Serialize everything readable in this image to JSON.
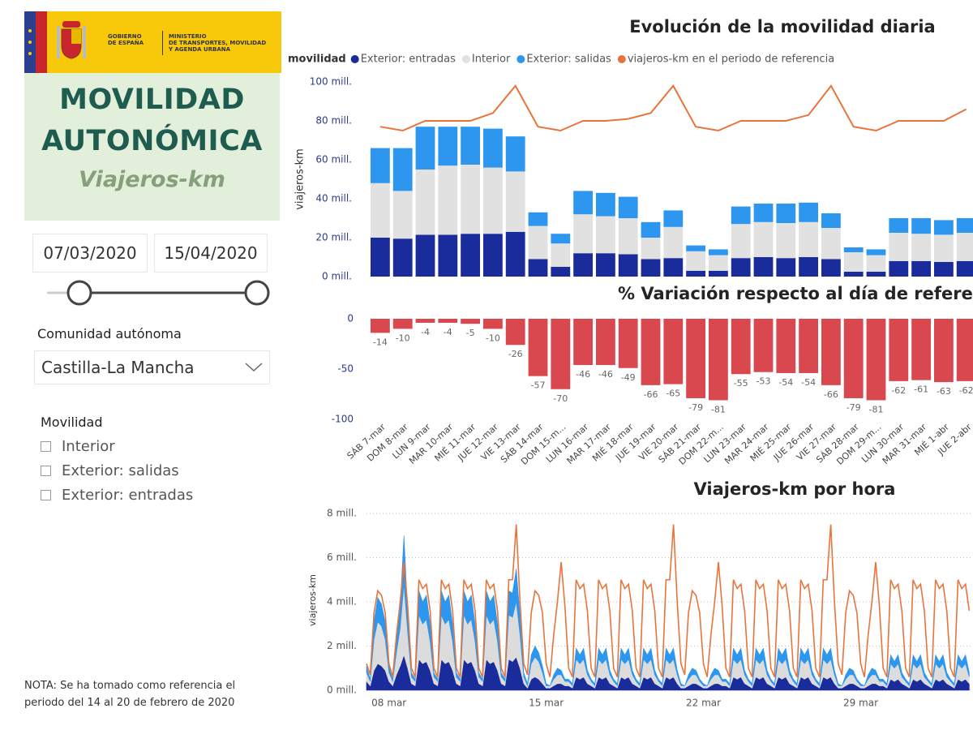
{
  "panel": {
    "logo": {
      "gobierno": [
        "GOBIERNO",
        "DE ESPAÑA"
      ],
      "ministerio": [
        "MINISTERIO",
        "DE TRANSPORTES, MOVILIDAD",
        "Y AGENDA URBANA"
      ]
    },
    "title": [
      "MOVILIDAD",
      "AUTONÓMICA"
    ],
    "subtitle": "Viajeros-km",
    "date_start": "07/03/2020",
    "date_end": "15/04/2020",
    "region_label": "Comunidad autónoma",
    "region": "Castilla-La Mancha",
    "filter_label": "Movilidad",
    "filter_options": [
      "Interior",
      "Exterior: salidas",
      "Exterior: entradas"
    ],
    "note": "NOTA: Se ha tomado como referencia el periodo del 14 al 20 de febrero de 2020"
  },
  "chart_data": [
    {
      "type": "bar",
      "stacked": true,
      "title": "Evolución de la movilidad diaria",
      "legend_title": "movilidad",
      "y_label": "viajeros-km",
      "ylim": [
        0,
        100
      ],
      "yticks": [
        {
          "value": 0,
          "label": "0 mill."
        },
        {
          "value": 20,
          "label": "20 mill."
        },
        {
          "value": 40,
          "label": "40 mill."
        },
        {
          "value": 60,
          "label": "60 mill."
        },
        {
          "value": 80,
          "label": "80 mill."
        },
        {
          "value": 100,
          "label": "100 mill."
        }
      ],
      "grid": false,
      "series": [
        {
          "name": "Exterior: entradas",
          "color": "#1a2b9b",
          "values": [
            20,
            19.5,
            21.5,
            21.5,
            22,
            22,
            23,
            9,
            5,
            12,
            12,
            11.5,
            9,
            9.5,
            3,
            3,
            9.5,
            10,
            9.5,
            10,
            9,
            2.5,
            2.5,
            8,
            8,
            7.5,
            8
          ]
        },
        {
          "name": "Interior",
          "color": "#e1e1e1",
          "values": [
            28,
            24.5,
            33.5,
            35.5,
            35.5,
            34,
            31,
            17,
            12,
            20,
            19,
            18.5,
            11,
            16,
            10,
            8,
            17.5,
            18,
            18,
            18,
            16,
            10,
            8.5,
            14.5,
            14,
            14,
            14.5
          ]
        },
        {
          "name": "Exterior: salidas",
          "color": "#2d97ef",
          "values": [
            18,
            22,
            22,
            20,
            19.5,
            20,
            18,
            7,
            5,
            12,
            12,
            11,
            8,
            8.5,
            3,
            3,
            9,
            9.5,
            10,
            10,
            7.5,
            2.5,
            3,
            7.5,
            8,
            7.5,
            7.5
          ]
        },
        {
          "name": "viajeros-km en el periodo de referencia",
          "type": "line",
          "color": "#e8743b",
          "values": [
            77,
            75,
            80,
            80,
            80,
            84,
            98,
            77,
            75,
            80,
            80,
            81,
            84,
            98,
            77,
            75,
            80,
            80,
            80,
            83,
            98,
            77,
            75,
            80,
            80,
            80,
            86
          ]
        }
      ]
    },
    {
      "type": "bar",
      "title": "% Variación respecto al día de referencia",
      "color": "#d9474f",
      "categories": [
        "SÁB 7-mar",
        "DOM 8-mar",
        "LUN 9-mar",
        "MAR 10-mar",
        "MIÉ 11-mar",
        "JUE 12-mar",
        "VIE 13-mar",
        "SÁB 14-mar",
        "DOM 15-m...",
        "LUN 16-mar",
        "MAR 17-mar",
        "MIÉ 18-mar",
        "JUE 19-mar",
        "VIE 20-mar",
        "SÁB 21-mar",
        "DOM 22-m...",
        "LUN 23-mar",
        "MAR 24-mar",
        "MIÉ 25-mar",
        "JUE 26-mar",
        "VIE 27-mar",
        "SÁB 28-mar",
        "DOM 29-m...",
        "LUN 30-mar",
        "MAR 31-mar",
        "MIÉ 1-abr",
        "JUE 2-abr"
      ],
      "values": [
        -14,
        -10,
        -4,
        -4,
        -5,
        -10,
        -26,
        -57,
        -70,
        -46,
        -46,
        -49,
        -66,
        -65,
        -79,
        -81,
        -55,
        -53,
        -54,
        -54,
        -66,
        -79,
        -81,
        -62,
        -61,
        -63,
        -62
      ],
      "ylim": [
        -100,
        0
      ],
      "yticks": [
        0,
        -50,
        -100
      ],
      "grid": false
    },
    {
      "type": "area",
      "stacked": true,
      "title": "Viajeros-km por hora",
      "y_label": "viajeros-km",
      "grid": true,
      "xlim": [
        0,
        648
      ],
      "xticks": [
        {
          "value": 24,
          "label": "08 mar"
        },
        {
          "value": 192,
          "label": "15 mar"
        },
        {
          "value": 360,
          "label": "22 mar"
        },
        {
          "value": 528,
          "label": "29 mar"
        }
      ],
      "ylim": [
        0,
        8
      ],
      "yticks": [
        {
          "value": 0,
          "label": "0 mill."
        },
        {
          "value": 2,
          "label": "2 mill."
        },
        {
          "value": 4,
          "label": "4 mill."
        },
        {
          "value": 6,
          "label": "6 mill."
        },
        {
          "value": 8,
          "label": "8 mill."
        }
      ],
      "x": [
        0,
        4,
        8,
        12,
        16,
        20,
        24,
        28,
        32,
        36,
        40,
        44,
        48,
        52,
        56,
        60,
        64,
        68,
        72,
        76,
        80,
        84,
        88,
        92,
        96,
        100,
        104,
        108,
        112,
        116,
        120,
        124,
        128,
        132,
        136,
        140,
        144,
        148,
        152,
        156,
        160,
        164,
        168,
        172,
        176,
        180,
        184,
        188,
        192,
        196,
        200,
        204,
        208,
        212,
        216,
        220,
        224,
        228,
        232,
        236,
        240,
        244,
        248,
        252,
        256,
        260,
        264,
        268,
        272,
        276,
        280,
        284,
        288,
        292,
        296,
        300,
        304,
        308,
        312,
        316,
        320,
        324,
        328,
        332,
        336,
        340,
        344,
        348,
        352,
        356,
        360,
        364,
        368,
        372,
        376,
        380,
        384,
        388,
        392,
        396,
        400,
        404,
        408,
        412,
        416,
        420,
        424,
        428,
        432,
        436,
        440,
        444,
        448,
        452,
        456,
        460,
        464,
        468,
        472,
        476,
        480,
        484,
        488,
        492,
        496,
        500,
        504,
        508,
        512,
        516,
        520,
        524,
        528,
        532,
        536,
        540,
        544,
        548,
        552,
        556,
        560,
        564,
        568,
        572,
        576,
        580,
        584,
        588,
        592,
        596,
        600,
        604,
        608,
        612,
        616,
        620,
        624,
        628,
        632,
        636,
        640,
        644
      ],
      "series": [
        {
          "color": "#1a2b9b",
          "values": [
            0.4,
            0.2,
            0.9,
            1.2,
            1.1,
            0.9,
            0.4,
            0.2,
            0.7,
            1.1,
            1.6,
            1.0,
            0.3,
            0.2,
            1.4,
            1.2,
            1.3,
            0.9,
            0.3,
            0.2,
            1.4,
            1.2,
            1.3,
            0.9,
            0.3,
            0.2,
            1.4,
            1.2,
            1.3,
            0.9,
            0.3,
            0.2,
            1.4,
            1.2,
            1.3,
            0.9,
            0.3,
            0.2,
            1.4,
            1.3,
            1.5,
            1.0,
            0.3,
            0.1,
            0.5,
            0.6,
            0.5,
            0.3,
            0.1,
            0.1,
            0.2,
            0.3,
            0.3,
            0.2,
            0.2,
            0.1,
            0.6,
            0.5,
            0.6,
            0.3,
            0.2,
            0.1,
            0.6,
            0.5,
            0.6,
            0.3,
            0.2,
            0.1,
            0.6,
            0.5,
            0.6,
            0.3,
            0.2,
            0.1,
            0.6,
            0.5,
            0.6,
            0.3,
            0.2,
            0.1,
            0.6,
            0.5,
            0.6,
            0.3,
            0.1,
            0.1,
            0.2,
            0.3,
            0.3,
            0.2,
            0.1,
            0.1,
            0.2,
            0.3,
            0.3,
            0.2,
            0.2,
            0.1,
            0.6,
            0.5,
            0.6,
            0.3,
            0.2,
            0.1,
            0.6,
            0.5,
            0.6,
            0.3,
            0.2,
            0.1,
            0.6,
            0.5,
            0.6,
            0.3,
            0.2,
            0.1,
            0.6,
            0.5,
            0.6,
            0.3,
            0.2,
            0.1,
            0.6,
            0.5,
            0.6,
            0.3,
            0.1,
            0.1,
            0.2,
            0.3,
            0.3,
            0.2,
            0.1,
            0.1,
            0.2,
            0.3,
            0.3,
            0.2,
            0.2,
            0.1,
            0.5,
            0.4,
            0.5,
            0.3,
            0.2,
            0.1,
            0.5,
            0.4,
            0.5,
            0.3,
            0.2,
            0.1,
            0.5,
            0.4,
            0.5,
            0.3,
            0.2,
            0.1,
            0.5,
            0.4,
            0.5,
            0.3
          ]
        },
        {
          "color": "#dcdcdc",
          "values": [
            0.4,
            0.2,
            1.4,
            1.9,
            1.8,
            1.4,
            0.4,
            0.2,
            1.0,
            1.7,
            3.2,
            1.6,
            0.3,
            0.2,
            2.0,
            1.8,
            1.9,
            1.3,
            0.3,
            0.2,
            2.0,
            1.8,
            1.9,
            1.3,
            0.3,
            0.2,
            2.0,
            1.8,
            1.9,
            1.3,
            0.3,
            0.2,
            2.0,
            1.8,
            1.9,
            1.3,
            0.3,
            0.2,
            2.0,
            2.0,
            2.5,
            1.5,
            0.3,
            0.1,
            0.7,
            0.9,
            0.8,
            0.5,
            0.1,
            0.1,
            0.3,
            0.4,
            0.4,
            0.2,
            0.2,
            0.1,
            0.8,
            0.7,
            0.8,
            0.4,
            0.2,
            0.1,
            0.8,
            0.7,
            0.8,
            0.4,
            0.2,
            0.1,
            0.8,
            0.7,
            0.8,
            0.4,
            0.2,
            0.1,
            0.8,
            0.7,
            0.8,
            0.4,
            0.2,
            0.1,
            0.8,
            0.7,
            0.8,
            0.4,
            0.1,
            0.1,
            0.3,
            0.4,
            0.4,
            0.2,
            0.1,
            0.1,
            0.3,
            0.4,
            0.4,
            0.2,
            0.2,
            0.1,
            0.8,
            0.7,
            0.8,
            0.4,
            0.2,
            0.1,
            0.8,
            0.7,
            0.8,
            0.4,
            0.2,
            0.1,
            0.8,
            0.7,
            0.8,
            0.4,
            0.2,
            0.1,
            0.8,
            0.7,
            0.8,
            0.4,
            0.2,
            0.1,
            0.8,
            0.7,
            0.8,
            0.4,
            0.1,
            0.1,
            0.3,
            0.4,
            0.4,
            0.2,
            0.1,
            0.1,
            0.3,
            0.4,
            0.4,
            0.2,
            0.2,
            0.1,
            0.7,
            0.6,
            0.7,
            0.3,
            0.2,
            0.1,
            0.7,
            0.6,
            0.7,
            0.3,
            0.2,
            0.1,
            0.7,
            0.6,
            0.7,
            0.3,
            0.2,
            0.1,
            0.7,
            0.6,
            0.7,
            0.3
          ]
        },
        {
          "color": "#2d97ef",
          "values": [
            0.3,
            0.1,
            0.8,
            1.1,
            1.0,
            0.8,
            0.3,
            0.1,
            0.6,
            1.0,
            2.2,
            1.0,
            0.2,
            0.1,
            1.1,
            1.0,
            1.1,
            0.8,
            0.2,
            0.1,
            1.1,
            1.0,
            1.1,
            0.8,
            0.2,
            0.1,
            1.1,
            1.0,
            1.1,
            0.8,
            0.2,
            0.1,
            1.1,
            1.0,
            1.1,
            0.8,
            0.2,
            0.1,
            1.1,
            1.1,
            1.5,
            0.9,
            0.2,
            0.1,
            0.4,
            0.5,
            0.4,
            0.3,
            0.1,
            0.0,
            0.2,
            0.3,
            0.2,
            0.1,
            0.1,
            0.1,
            0.5,
            0.4,
            0.5,
            0.2,
            0.1,
            0.1,
            0.5,
            0.4,
            0.5,
            0.2,
            0.1,
            0.1,
            0.5,
            0.4,
            0.5,
            0.2,
            0.1,
            0.1,
            0.5,
            0.4,
            0.5,
            0.2,
            0.1,
            0.1,
            0.5,
            0.4,
            0.5,
            0.2,
            0.1,
            0.0,
            0.2,
            0.3,
            0.2,
            0.1,
            0.1,
            0.0,
            0.2,
            0.3,
            0.2,
            0.1,
            0.1,
            0.1,
            0.5,
            0.4,
            0.5,
            0.2,
            0.1,
            0.1,
            0.5,
            0.4,
            0.5,
            0.2,
            0.1,
            0.1,
            0.5,
            0.4,
            0.5,
            0.2,
            0.1,
            0.1,
            0.5,
            0.4,
            0.5,
            0.2,
            0.1,
            0.1,
            0.5,
            0.4,
            0.5,
            0.2,
            0.1,
            0.0,
            0.2,
            0.3,
            0.2,
            0.1,
            0.1,
            0.0,
            0.2,
            0.3,
            0.2,
            0.1,
            0.1,
            0.1,
            0.4,
            0.3,
            0.4,
            0.2,
            0.1,
            0.1,
            0.4,
            0.3,
            0.4,
            0.2,
            0.1,
            0.1,
            0.4,
            0.3,
            0.4,
            0.2,
            0.1,
            0.1,
            0.4,
            0.3,
            0.4,
            0.2
          ]
        },
        {
          "type": "line",
          "color": "#e8743b",
          "values": [
            1.2,
            0.7,
            3.5,
            4.5,
            4.3,
            3.5,
            1.2,
            0.6,
            2.5,
            4.0,
            5.8,
            3.8,
            1.0,
            0.6,
            5.0,
            4.6,
            4.8,
            3.6,
            1.0,
            0.6,
            5.0,
            4.6,
            4.8,
            3.6,
            1.0,
            0.6,
            5.0,
            4.6,
            4.8,
            3.6,
            1.0,
            0.6,
            5.0,
            4.6,
            4.8,
            3.6,
            1.0,
            0.6,
            5.0,
            5.0,
            7.5,
            4.0,
            1.2,
            0.7,
            3.5,
            4.5,
            4.3,
            3.5,
            1.2,
            0.6,
            2.5,
            4.0,
            5.8,
            3.8,
            1.0,
            0.6,
            5.0,
            4.6,
            4.8,
            3.6,
            1.0,
            0.6,
            5.0,
            4.6,
            4.8,
            3.6,
            1.0,
            0.6,
            5.0,
            4.6,
            4.8,
            3.6,
            1.0,
            0.6,
            5.0,
            4.6,
            4.8,
            3.6,
            1.0,
            0.6,
            5.0,
            5.0,
            7.5,
            4.0,
            1.2,
            0.7,
            3.5,
            4.5,
            4.3,
            3.5,
            1.2,
            0.6,
            2.5,
            4.0,
            5.8,
            3.8,
            1.0,
            0.6,
            5.0,
            4.6,
            4.8,
            3.6,
            1.0,
            0.6,
            5.0,
            4.6,
            4.8,
            3.6,
            1.0,
            0.6,
            5.0,
            4.6,
            4.8,
            3.6,
            1.0,
            0.6,
            5.0,
            4.6,
            4.8,
            3.6,
            1.0,
            0.6,
            5.0,
            5.0,
            7.5,
            4.0,
            1.2,
            0.7,
            3.5,
            4.5,
            4.3,
            3.5,
            1.2,
            0.6,
            2.5,
            4.0,
            5.8,
            3.8,
            1.0,
            0.6,
            5.0,
            4.6,
            4.8,
            3.6,
            1.0,
            0.6,
            5.0,
            4.6,
            4.8,
            3.6,
            1.0,
            0.6,
            5.0,
            4.6,
            4.8,
            3.6,
            1.0,
            0.6,
            5.0,
            4.6,
            4.8,
            3.6
          ]
        }
      ]
    }
  ]
}
